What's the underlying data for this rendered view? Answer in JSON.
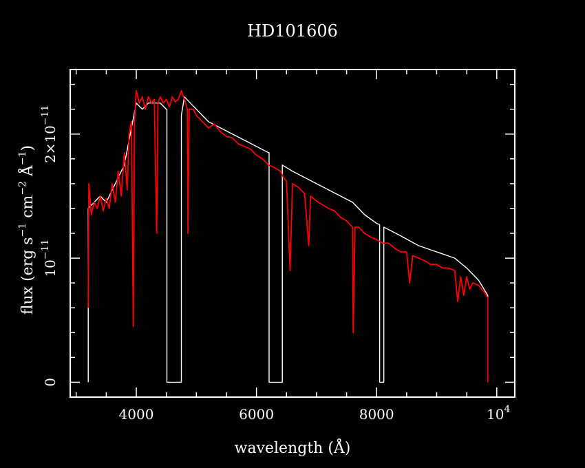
{
  "chart_data": {
    "type": "line",
    "title": "HD101606",
    "xlabel": "wavelength (Å)",
    "ylabel": {
      "base": "flux (erg s",
      "exp1": "−1",
      "mid1": " cm",
      "exp2": "−2",
      "mid2": " Å",
      "exp3": "−1",
      "end": ")"
    },
    "xlim": [
      2900,
      10300
    ],
    "ylim": [
      -1.2e-12,
      2.52e-11
    ],
    "x_ticks": [
      {
        "value": 4000,
        "label": "4000"
      },
      {
        "value": 6000,
        "label": "6000"
      },
      {
        "value": 8000,
        "label": "8000"
      }
    ],
    "x_tick_last": {
      "value": 10000,
      "base": "10",
      "exp": "4"
    },
    "y_ticks": [
      {
        "value": 0,
        "text": "0"
      },
      {
        "value": 1e-11,
        "base": "10",
        "exp": "−11"
      },
      {
        "value": 2e-11,
        "base": "2×10",
        "exp": "−11"
      }
    ],
    "grid": false,
    "colors": {
      "background": "#000000",
      "axes": "#ffffff",
      "series_1": "#ffffff",
      "series_2": "#ff0000"
    },
    "series": [
      {
        "color": "#ffffff",
        "points": [
          [
            3200,
            0
          ],
          [
            3200,
            1.4e-11
          ],
          [
            3300,
            1.45e-11
          ],
          [
            3400,
            1.5e-11
          ],
          [
            3500,
            1.45e-11
          ],
          [
            3600,
            1.55e-11
          ],
          [
            3700,
            1.65e-11
          ],
          [
            3800,
            1.75e-11
          ],
          [
            3900,
            2e-11
          ],
          [
            4000,
            2.25e-11
          ],
          [
            4100,
            2.2e-11
          ],
          [
            4200,
            2.25e-11
          ],
          [
            4300,
            2.25e-11
          ],
          [
            4400,
            2.25e-11
          ],
          [
            4500,
            2.2e-11
          ],
          [
            4510,
            2.2e-11
          ],
          [
            4510,
            0
          ],
          [
            4750,
            0
          ],
          [
            4750,
            2.15e-11
          ],
          [
            4800,
            2.3e-11
          ],
          [
            4900,
            2.25e-11
          ],
          [
            5000,
            2.2e-11
          ],
          [
            5100,
            2.15e-11
          ],
          [
            5200,
            2.1e-11
          ],
          [
            5400,
            2.05e-11
          ],
          [
            5600,
            2e-11
          ],
          [
            5800,
            1.95e-11
          ],
          [
            6000,
            1.9e-11
          ],
          [
            6200,
            1.85e-11
          ],
          [
            6210,
            1.85e-11
          ],
          [
            6210,
            0
          ],
          [
            6430,
            0
          ],
          [
            6430,
            1.75e-11
          ],
          [
            6600,
            1.7e-11
          ],
          [
            6800,
            1.65e-11
          ],
          [
            7000,
            1.6e-11
          ],
          [
            7200,
            1.55e-11
          ],
          [
            7400,
            1.5e-11
          ],
          [
            7600,
            1.45e-11
          ],
          [
            7800,
            1.35e-11
          ],
          [
            8000,
            1.28e-11
          ],
          [
            8050,
            1.27e-11
          ],
          [
            8050,
            0
          ],
          [
            8120,
            0
          ],
          [
            8120,
            1.25e-11
          ],
          [
            8400,
            1.18e-11
          ],
          [
            8700,
            1.1e-11
          ],
          [
            9000,
            1.05e-11
          ],
          [
            9300,
            1e-11
          ],
          [
            9500,
            9.2e-12
          ],
          [
            9700,
            8.2e-12
          ],
          [
            9850,
            7e-12
          ],
          [
            9850,
            0
          ]
        ]
      },
      {
        "color": "#ff0000",
        "points": [
          [
            3200,
            6e-12
          ],
          [
            3210,
            1.6e-11
          ],
          [
            3250,
            1.35e-11
          ],
          [
            3300,
            1.45e-11
          ],
          [
            3350,
            1.4e-11
          ],
          [
            3400,
            1.5e-11
          ],
          [
            3450,
            1.38e-11
          ],
          [
            3500,
            1.48e-11
          ],
          [
            3550,
            1.4e-11
          ],
          [
            3600,
            1.6e-11
          ],
          [
            3650,
            1.45e-11
          ],
          [
            3700,
            1.7e-11
          ],
          [
            3750,
            1.5e-11
          ],
          [
            3800,
            1.85e-11
          ],
          [
            3850,
            1.55e-11
          ],
          [
            3880,
            2e-11
          ],
          [
            3920,
            2.1e-11
          ],
          [
            3950,
            4.5e-12
          ],
          [
            3970,
            2.1e-11
          ],
          [
            4000,
            2.35e-11
          ],
          [
            4050,
            2.25e-11
          ],
          [
            4100,
            2.3e-11
          ],
          [
            4150,
            2.2e-11
          ],
          [
            4200,
            2.3e-11
          ],
          [
            4250,
            2.25e-11
          ],
          [
            4300,
            2.28e-11
          ],
          [
            4340,
            1.2e-11
          ],
          [
            4360,
            2.25e-11
          ],
          [
            4400,
            2.3e-11
          ],
          [
            4450,
            2.25e-11
          ],
          [
            4500,
            2.28e-11
          ],
          [
            4550,
            2.22e-11
          ],
          [
            4600,
            2.3e-11
          ],
          [
            4650,
            2.26e-11
          ],
          [
            4700,
            2.28e-11
          ],
          [
            4750,
            2.35e-11
          ],
          [
            4800,
            2.28e-11
          ],
          [
            4850,
            2.2e-11
          ],
          [
            4860,
            1.2e-11
          ],
          [
            4880,
            2.2e-11
          ],
          [
            4950,
            2.2e-11
          ],
          [
            5000,
            2.15e-11
          ],
          [
            5100,
            2.1e-11
          ],
          [
            5200,
            2.05e-11
          ],
          [
            5300,
            2.08e-11
          ],
          [
            5400,
            2.02e-11
          ],
          [
            5500,
            1.98e-11
          ],
          [
            5600,
            1.97e-11
          ],
          [
            5700,
            1.92e-11
          ],
          [
            5800,
            1.9e-11
          ],
          [
            5900,
            1.88e-11
          ],
          [
            6000,
            1.83e-11
          ],
          [
            6100,
            1.8e-11
          ],
          [
            6200,
            1.75e-11
          ],
          [
            6300,
            1.73e-11
          ],
          [
            6400,
            1.7e-11
          ],
          [
            6450,
            1.65e-11
          ],
          [
            6500,
            1.62e-11
          ],
          [
            6560,
            9e-12
          ],
          [
            6600,
            1.6e-11
          ],
          [
            6700,
            1.57e-11
          ],
          [
            6800,
            1.52e-11
          ],
          [
            6870,
            1.1e-11
          ],
          [
            6900,
            1.5e-11
          ],
          [
            7000,
            1.46e-11
          ],
          [
            7100,
            1.43e-11
          ],
          [
            7200,
            1.4e-11
          ],
          [
            7300,
            1.38e-11
          ],
          [
            7400,
            1.33e-11
          ],
          [
            7500,
            1.3e-11
          ],
          [
            7600,
            1.25e-11
          ],
          [
            7610,
            4e-12
          ],
          [
            7640,
            1.25e-11
          ],
          [
            7700,
            1.25e-11
          ],
          [
            7800,
            1.2e-11
          ],
          [
            7900,
            1.17e-11
          ],
          [
            8000,
            1.15e-11
          ],
          [
            8100,
            1.12e-11
          ],
          [
            8200,
            1.12e-11
          ],
          [
            8300,
            1.08e-11
          ],
          [
            8400,
            1.05e-11
          ],
          [
            8500,
            1.05e-11
          ],
          [
            8550,
            8e-12
          ],
          [
            8600,
            1.02e-11
          ],
          [
            8700,
            1e-11
          ],
          [
            8800,
            9.8e-12
          ],
          [
            8900,
            9.5e-12
          ],
          [
            9000,
            9.5e-12
          ],
          [
            9100,
            9.2e-12
          ],
          [
            9200,
            9.2e-12
          ],
          [
            9300,
            9e-12
          ],
          [
            9350,
            6.5e-12
          ],
          [
            9400,
            8.5e-12
          ],
          [
            9450,
            7e-12
          ],
          [
            9500,
            8.5e-12
          ],
          [
            9550,
            7.5e-12
          ],
          [
            9600,
            8e-12
          ],
          [
            9700,
            7.8e-12
          ],
          [
            9800,
            7.2e-12
          ],
          [
            9850,
            6.8e-12
          ],
          [
            9850,
            0
          ]
        ]
      }
    ]
  }
}
